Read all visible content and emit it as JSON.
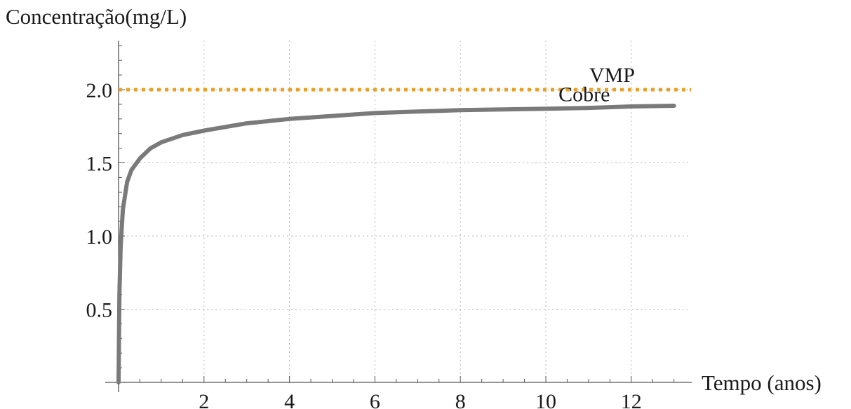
{
  "chart_data": {
    "type": "line",
    "ylabel": "Concentração(mg/L)",
    "xlabel": "Tempo (anos)",
    "xlim": [
      0,
      13.4
    ],
    "ylim": [
      0,
      2.3
    ],
    "x_ticks": [
      2,
      4,
      6,
      8,
      10,
      12
    ],
    "x_tick_labels": [
      "2",
      "4",
      "6",
      "8",
      "10",
      "12"
    ],
    "y_ticks": [
      0.5,
      1.0,
      1.5,
      2.0
    ],
    "y_tick_labels": [
      "0.5",
      "1.0",
      "1.5",
      "2.0"
    ],
    "grid": true,
    "series": [
      {
        "name": "Cobre",
        "color": "#7a7a7a",
        "style": "solid",
        "x": [
          0,
          0.02,
          0.05,
          0.1,
          0.2,
          0.3,
          0.5,
          0.75,
          1,
          1.5,
          2,
          3,
          4,
          5,
          6,
          7,
          8,
          9,
          10,
          11,
          12,
          13
        ],
        "y": [
          0,
          0.6,
          0.93,
          1.18,
          1.37,
          1.45,
          1.53,
          1.6,
          1.64,
          1.69,
          1.72,
          1.77,
          1.8,
          1.82,
          1.84,
          1.85,
          1.86,
          1.865,
          1.87,
          1.875,
          1.885,
          1.89
        ]
      },
      {
        "name": "VMP",
        "color": "#e8a020",
        "style": "dotted",
        "x": [
          0,
          13.4
        ],
        "y": [
          2.0,
          2.0
        ]
      }
    ],
    "annotations": [
      {
        "text": "VMP",
        "x": 11.55,
        "y": 2.1
      },
      {
        "text": "Cobre",
        "x": 10.9,
        "y": 1.97
      }
    ]
  }
}
